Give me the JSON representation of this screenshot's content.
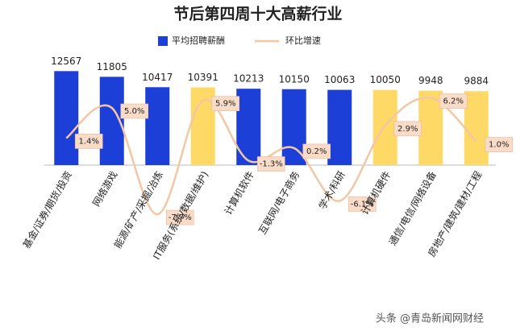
{
  "chart_data": {
    "type": "bar-line",
    "title": "节后第四周十大高薪行业",
    "watermark": "头条 @青岛新闻网财经",
    "categories": [
      "基金/证券/期货/投资",
      "网络游戏",
      "能源/矿产/采掘/冶炼",
      "IT服务(系统/数据/维护)",
      "计算机软件",
      "互联网/电子商务",
      "学术/科研",
      "计算机硬件",
      "通信/电信/网络设备",
      "房地产/建筑/建材/工程"
    ],
    "ylim": [
      0,
      14000
    ],
    "y2lim": [
      -10,
      10
    ],
    "series": [
      {
        "name": "平均招聘薪酬",
        "type": "bar",
        "color": "#1c3fd8",
        "colors": [
          "#1c3fd8",
          "#1c3fd8",
          "#1c3fd8",
          "#ffd966",
          "#1c3fd8",
          "#1c3fd8",
          "#1c3fd8",
          "#ffd966",
          "#ffd966",
          "#ffd966"
        ],
        "values": [
          12567,
          11805,
          10417,
          10391,
          10213,
          10150,
          10063,
          10050,
          9948,
          9884
        ]
      },
      {
        "name": "环比增速",
        "type": "line",
        "axis": "y2",
        "color": "#f4c7a4",
        "values": [
          1.4,
          5.0,
          -7.7,
          5.9,
          -1.3,
          0.2,
          -6.1,
          2.9,
          6.2,
          1.0
        ],
        "value_labels": [
          "1.4%",
          "5.0%",
          "-7.7%",
          "5.9%",
          "-1.3%",
          "0.2%",
          "-6.1%",
          "2.9%",
          "6.2%",
          "1.0%"
        ]
      }
    ]
  }
}
